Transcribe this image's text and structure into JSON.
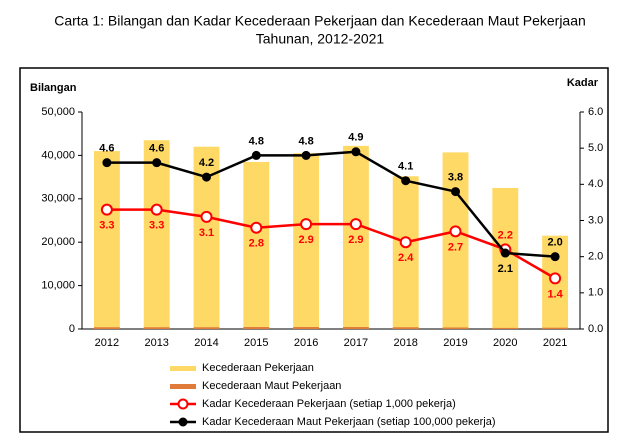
{
  "chart_data": {
    "type": "combo",
    "title": "Carta 1: Bilangan dan Kadar Kecederaan Pekerjaan dan Kecederaan Maut Pekerjaan",
    "subtitle": "Tahunan, 2012-2021",
    "ylabel": "Bilangan",
    "y2label": "Kadar",
    "categories": [
      "2012",
      "2013",
      "2014",
      "2015",
      "2016",
      "2017",
      "2018",
      "2019",
      "2020",
      "2021"
    ],
    "ylim": [
      0,
      50000
    ],
    "yticks": [
      0,
      {
        "value": 10000,
        "label": "10,000"
      },
      {
        "value": 20000,
        "label": "20,000"
      },
      {
        "value": 30000,
        "label": "30,000"
      },
      {
        "value": 40000,
        "label": "40,000"
      },
      {
        "value": 50000,
        "label": "50,000"
      }
    ],
    "y2lim": [
      0,
      6
    ],
    "y2ticks": [
      {
        "value": 0,
        "label": "0.0"
      },
      {
        "value": 1,
        "label": "1.0"
      },
      {
        "value": 2,
        "label": "2.0"
      },
      {
        "value": 3,
        "label": "3.0"
      },
      {
        "value": 4,
        "label": "4.0"
      },
      {
        "value": 5,
        "label": "5.0"
      },
      {
        "value": 6,
        "label": "6.0"
      }
    ],
    "series": [
      {
        "name": "Kecederaan Pekerjaan",
        "type": "bar",
        "color": "#ffd966",
        "values": [
          41000,
          43500,
          42000,
          38500,
          40500,
          42200,
          35200,
          40700,
          32500,
          21500
        ]
      },
      {
        "name": "Kecederaan Maut Pekerjaan",
        "type": "bar",
        "color": "#e07b39",
        "values": [
          400,
          400,
          400,
          450,
          450,
          450,
          400,
          350,
          250,
          300
        ]
      },
      {
        "name": "Kadar Kecederaan Pekerjaan (setiap 1,000 pekerja)",
        "type": "line",
        "axis": "y2",
        "color": "#ff0000",
        "values": [
          3.3,
          3.3,
          3.1,
          2.8,
          2.9,
          2.9,
          2.4,
          2.7,
          2.2,
          1.4
        ],
        "value_labels": [
          "3.3",
          "3.3",
          "3.1",
          "2.8",
          "2.9",
          "2.9",
          "2.4",
          "2.7",
          "2.2",
          "1.4"
        ]
      },
      {
        "name": "Kadar Kecederaan Maut Pekerjaan (setiap 100,000 pekerja)",
        "type": "line",
        "axis": "y2",
        "color": "#000000",
        "values": [
          4.6,
          4.6,
          4.2,
          4.8,
          4.8,
          4.9,
          4.1,
          3.8,
          2.1,
          2.0
        ],
        "value_labels": [
          "4.6",
          "4.6",
          "4.2",
          "4.8",
          "4.8",
          "4.9",
          "4.1",
          "3.8",
          "2.1",
          "2.0"
        ]
      }
    ]
  }
}
